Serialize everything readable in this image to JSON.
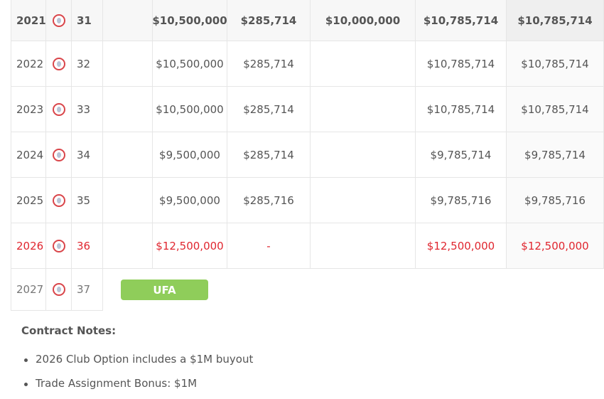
{
  "table": {
    "rows": [
      {
        "year": "2021",
        "age": "31",
        "base": "$10,500,000",
        "signing": "$285,714",
        "option": "$10,000,000",
        "total": "$10,785,714",
        "cash": "$10,785,714",
        "bold": true
      },
      {
        "year": "2022",
        "age": "32",
        "base": "$10,500,000",
        "signing": "$285,714",
        "total": "$10,785,714",
        "cash": "$10,785,714"
      },
      {
        "year": "2023",
        "age": "33",
        "base": "$10,500,000",
        "signing": "$285,714",
        "total": "$10,785,714",
        "cash": "$10,785,714"
      },
      {
        "year": "2024",
        "age": "34",
        "base": "$9,500,000",
        "signing": "$285,714",
        "total": "$9,785,714",
        "cash": "$9,785,714"
      },
      {
        "year": "2025",
        "age": "35",
        "base": "$9,500,000",
        "signing": "$285,716",
        "total": "$9,785,716",
        "cash": "$9,785,716"
      },
      {
        "year": "2026",
        "age": "36",
        "base": "$12,500,000",
        "signing": "-",
        "total": "$12,500,000",
        "cash": "$12,500,000",
        "color": "#e0262f"
      },
      {
        "year": "2027",
        "age": "37",
        "status": "UFA"
      }
    ]
  },
  "notes": {
    "title": "Contract Notes:",
    "items": [
      "2026 Club Option includes a $1M buyout",
      "Trade Assignment Bonus: $1M"
    ]
  }
}
